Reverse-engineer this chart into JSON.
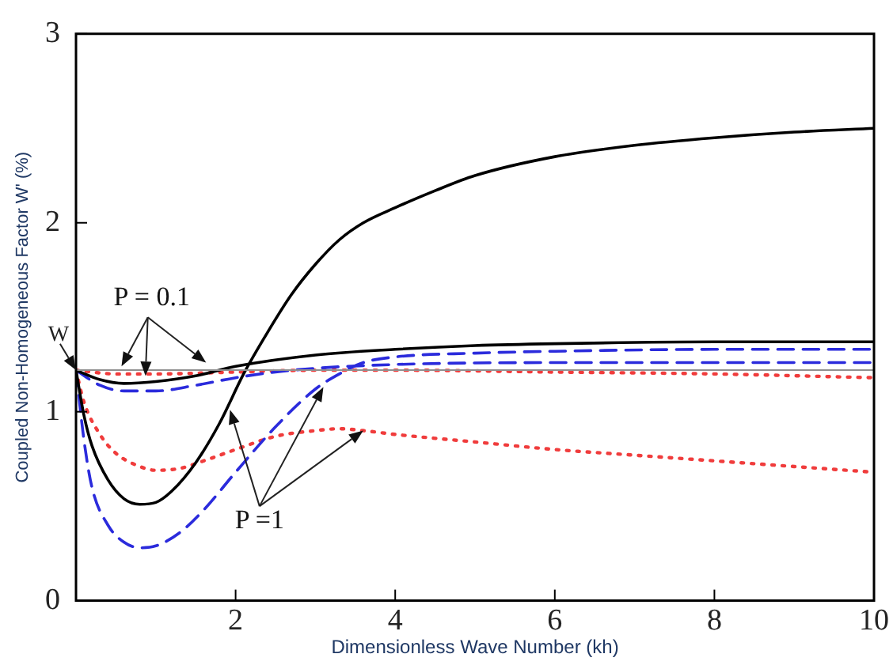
{
  "chart_data": {
    "type": "line",
    "xlabel": "Dimensionless Wave Number (kh)",
    "ylabel": "Coupled Non-Homogeneous Factor W' (%)",
    "xlim": [
      0,
      10
    ],
    "ylim": [
      0,
      3
    ],
    "xticks": [
      {
        "value": 0,
        "label": null
      },
      2,
      4,
      6,
      8,
      10
    ],
    "yticks": [
      0,
      1,
      2,
      3
    ],
    "grid": false,
    "legend": false,
    "marker": "none",
    "series": [
      {
        "color": "#000000",
        "line_style": "solid",
        "x": [
          0,
          0.3,
          0.6,
          1.0,
          1.5,
          2,
          3,
          4,
          5,
          6,
          8,
          10
        ],
        "values": [
          1.22,
          1.17,
          1.15,
          1.16,
          1.19,
          1.24,
          1.3,
          1.33,
          1.35,
          1.36,
          1.37,
          1.37
        ]
      },
      {
        "color": "#000000",
        "line_style": "solid",
        "x": [
          0,
          0.1,
          0.2,
          0.4,
          0.6,
          0.8,
          1.0,
          1.2,
          1.5,
          1.8,
          2.1,
          2.4,
          2.7,
          3.0,
          3.3,
          3.6,
          4.0,
          4.5,
          5,
          6,
          7,
          8,
          9,
          10
        ],
        "values": [
          1.22,
          0.98,
          0.82,
          0.64,
          0.54,
          0.51,
          0.52,
          0.58,
          0.73,
          0.94,
          1.2,
          1.42,
          1.62,
          1.78,
          1.91,
          2.0,
          2.08,
          2.17,
          2.25,
          2.35,
          2.41,
          2.45,
          2.48,
          2.5
        ]
      },
      {
        "color": "#2b2bdc",
        "line_style": "dashed",
        "x": [
          0,
          0.3,
          0.6,
          1.0,
          1.5,
          2,
          2.5,
          3,
          4,
          6,
          10
        ],
        "values": [
          1.22,
          1.14,
          1.11,
          1.11,
          1.14,
          1.18,
          1.21,
          1.23,
          1.25,
          1.26,
          1.26
        ]
      },
      {
        "color": "#2b2bdc",
        "line_style": "dashed",
        "x": [
          0,
          0.1,
          0.2,
          0.4,
          0.6,
          0.8,
          1.0,
          1.3,
          1.6,
          2.0,
          2.5,
          3.0,
          3.3,
          3.6,
          4,
          5,
          6,
          8,
          10
        ],
        "values": [
          1.22,
          0.85,
          0.6,
          0.4,
          0.31,
          0.28,
          0.29,
          0.36,
          0.48,
          0.68,
          0.92,
          1.12,
          1.2,
          1.26,
          1.29,
          1.31,
          1.32,
          1.33,
          1.33
        ]
      },
      {
        "color": "#f03c3c",
        "line_style": "dotted",
        "x": [
          0,
          0.5,
          1,
          2,
          3,
          4,
          6,
          8,
          10
        ],
        "values": [
          1.22,
          1.2,
          1.2,
          1.21,
          1.22,
          1.22,
          1.21,
          1.2,
          1.18
        ]
      },
      {
        "color": "#f03c3c",
        "line_style": "dotted",
        "x": [
          0,
          0.1,
          0.3,
          0.5,
          0.8,
          1.0,
          1.3,
          1.6,
          2.0,
          2.5,
          3.0,
          3.3,
          3.6,
          4,
          5,
          6,
          7,
          8,
          9,
          10
        ],
        "values": [
          1.22,
          1.05,
          0.88,
          0.78,
          0.71,
          0.69,
          0.7,
          0.74,
          0.8,
          0.87,
          0.9,
          0.91,
          0.9,
          0.88,
          0.84,
          0.8,
          0.77,
          0.74,
          0.71,
          0.68
        ]
      }
    ],
    "ref_lines": [
      {
        "axis": "y",
        "value": 1.22,
        "label": "W",
        "color": "#909090"
      }
    ],
    "annotations": [
      "P = 0.1",
      {
        "text": "P =1",
        "x": 3.6,
        "y": 0.9
      }
    ]
  }
}
